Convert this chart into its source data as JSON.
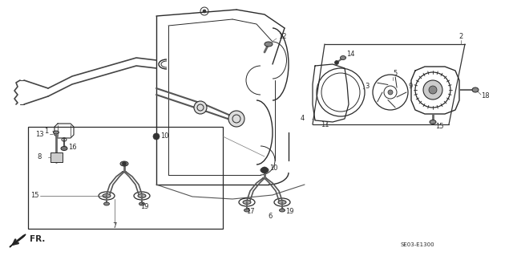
{
  "bg_color": "#ffffff",
  "line_color": "#2a2a2a",
  "diagram_code": "SE03-E1300",
  "fr_label": "FR.",
  "figsize": [
    6.4,
    3.19
  ],
  "dpi": 100
}
